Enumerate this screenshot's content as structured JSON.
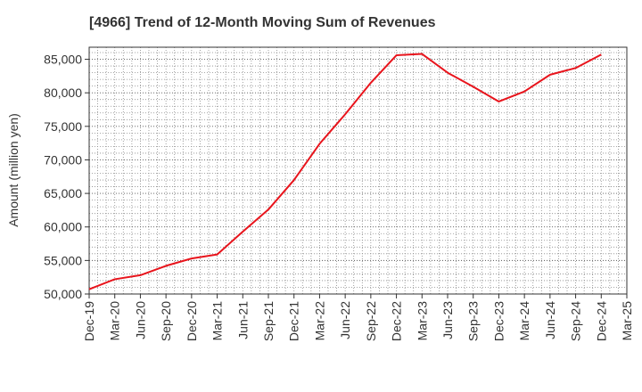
{
  "chart_data": {
    "type": "line",
    "title": "[4966]  Trend of 12-Month Moving Sum of Revenues",
    "xlabel": "",
    "ylabel": "Amount (million yen)",
    "ylim": [
      50000,
      86800
    ],
    "yticks": [
      50000,
      55000,
      60000,
      65000,
      70000,
      75000,
      80000,
      85000
    ],
    "ytick_labels": [
      "50,000",
      "55,000",
      "60,000",
      "65,000",
      "70,000",
      "75,000",
      "80,000",
      "85,000"
    ],
    "xtick_labels": [
      "Dec-19",
      "Mar-20",
      "Jun-20",
      "Sep-20",
      "Dec-20",
      "Mar-21",
      "Jun-21",
      "Sep-21",
      "Dec-21",
      "Mar-22",
      "Jun-22",
      "Sep-22",
      "Dec-22",
      "Mar-23",
      "Jun-23",
      "Sep-23",
      "Dec-23",
      "Mar-24",
      "Jun-24",
      "Sep-24",
      "Dec-24",
      "Mar-25"
    ],
    "grid": true,
    "line_color": "#e8141c",
    "series": [
      {
        "x": [
          "Dec-19",
          "Mar-20",
          "Jun-20",
          "Sep-20",
          "Dec-20",
          "Mar-21",
          "Jun-21",
          "Sep-21",
          "Dec-21",
          "Mar-22",
          "Jun-22",
          "Sep-22",
          "Dec-22",
          "Mar-23",
          "Jun-23",
          "Sep-23",
          "Dec-23",
          "Mar-24",
          "Jun-24",
          "Sep-24",
          "Dec-24"
        ],
        "values": [
          50700,
          52200,
          52800,
          54200,
          55300,
          55900,
          59300,
          62600,
          67000,
          72400,
          76800,
          81500,
          85600,
          85800,
          83000,
          80900,
          78700,
          80200,
          82700,
          83700,
          85700
        ]
      }
    ]
  }
}
